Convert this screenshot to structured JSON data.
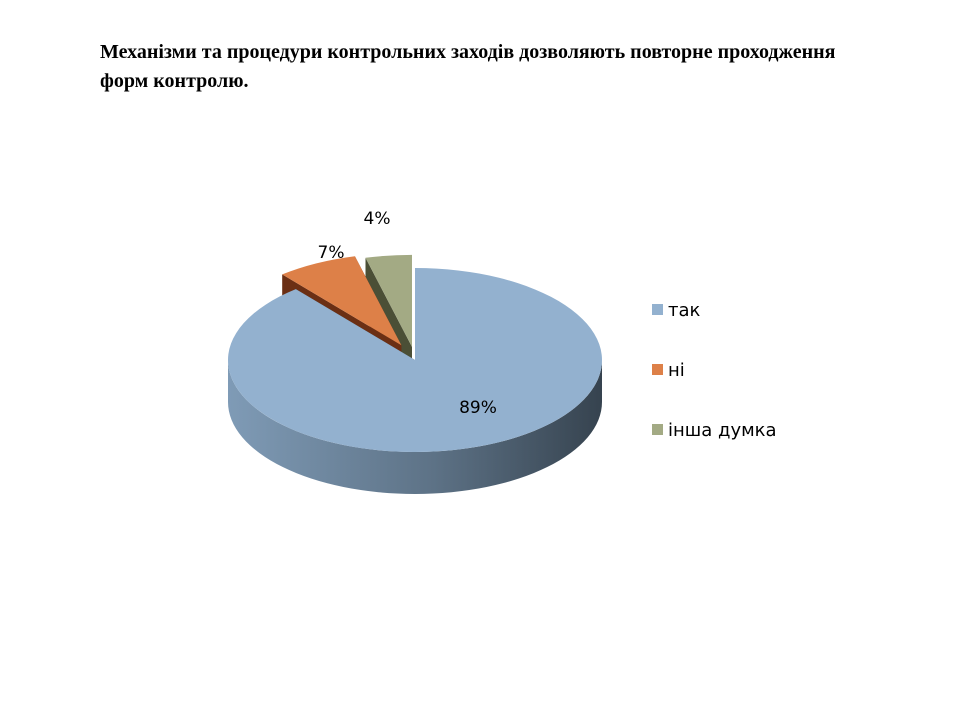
{
  "page": {
    "title": "Механізми та процедури контрольних заходів дозволяють повторне проходження форм контролю."
  },
  "chart_data": {
    "type": "pie",
    "title": "Механізми та процедури контрольних заходів дозволяють повторне проходження форм контролю.",
    "style": "3d-exploded",
    "legend_position": "right",
    "categories": [
      "так",
      "ні",
      "інша думка"
    ],
    "values": [
      89,
      7,
      4
    ],
    "labels": [
      "89%",
      "7%",
      "4%"
    ],
    "colors": [
      "#93b1cf",
      "#dd8048",
      "#a3aa84"
    ],
    "side_colors": [
      "#4a5b6c",
      "#6b2f14",
      "#4b4f36"
    ]
  }
}
